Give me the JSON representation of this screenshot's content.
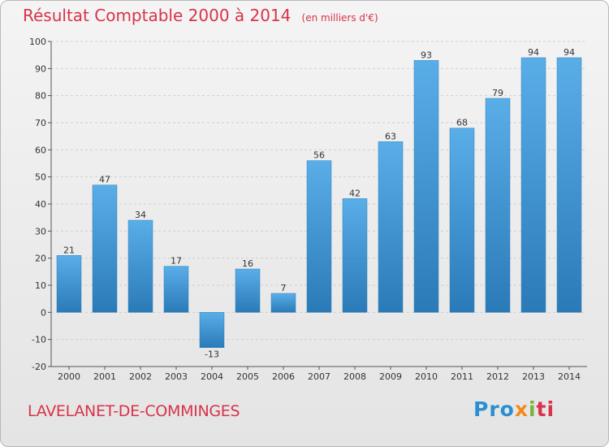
{
  "header": {
    "title": "Résultat Comptable 2000 à 2014",
    "unit": "(en milliers d'€)"
  },
  "footer": {
    "commune": "LAVELANET-DE-COMMINGES",
    "logo": "Proxiti"
  },
  "colors": {
    "bar_top": "#5aaee8",
    "bar_bottom": "#2a7ab8",
    "title": "#d8334a"
  },
  "chart_data": {
    "type": "bar",
    "categories": [
      "2000",
      "2001",
      "2002",
      "2003",
      "2004",
      "2005",
      "2006",
      "2007",
      "2008",
      "2009",
      "2010",
      "2011",
      "2012",
      "2013",
      "2014"
    ],
    "values": [
      21,
      47,
      34,
      17,
      -13,
      16,
      7,
      56,
      42,
      63,
      93,
      68,
      79,
      94,
      94
    ],
    "data_labels": [
      "21",
      "47",
      "34",
      "17",
      "-13",
      "16",
      "7",
      "56",
      "42",
      "63",
      "93",
      "68",
      "79",
      "94",
      "94"
    ],
    "ylim": [
      -20,
      100
    ],
    "yticks": [
      -20,
      -10,
      0,
      10,
      20,
      30,
      40,
      50,
      60,
      70,
      80,
      90,
      100
    ],
    "grid": true,
    "xlabel": "",
    "ylabel": ""
  }
}
